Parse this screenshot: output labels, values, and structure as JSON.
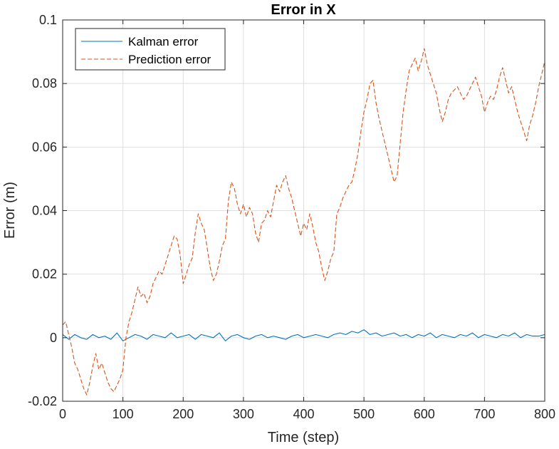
{
  "chart_data": {
    "type": "line",
    "title": "Error in X",
    "xlabel": "Time (step)",
    "ylabel": "Error (m)",
    "xlim": [
      0,
      800
    ],
    "ylim": [
      -0.02,
      0.1
    ],
    "xticks": [
      0,
      100,
      200,
      300,
      400,
      500,
      600,
      700,
      800
    ],
    "xtick_labels": [
      "0",
      "100",
      "200",
      "300",
      "400",
      "500",
      "600",
      "700",
      "800"
    ],
    "yticks": [
      -0.02,
      0,
      0.02,
      0.04,
      0.06,
      0.08,
      0.1
    ],
    "ytick_labels": [
      "-0.02",
      "0",
      "0.02",
      "0.04",
      "0.06",
      "0.08",
      "0.1"
    ],
    "grid": true,
    "legend_position": "top-left",
    "series": [
      {
        "name": "Kalman error",
        "color": "#0072BD",
        "style": "solid",
        "x": [
          0,
          10,
          20,
          30,
          40,
          50,
          60,
          70,
          80,
          90,
          100,
          110,
          120,
          130,
          140,
          150,
          160,
          170,
          180,
          190,
          200,
          210,
          220,
          230,
          240,
          250,
          260,
          270,
          280,
          290,
          300,
          310,
          320,
          330,
          340,
          350,
          360,
          370,
          380,
          390,
          400,
          410,
          420,
          430,
          440,
          450,
          460,
          470,
          480,
          490,
          500,
          510,
          520,
          530,
          540,
          550,
          560,
          570,
          580,
          590,
          600,
          610,
          620,
          630,
          640,
          650,
          660,
          670,
          680,
          690,
          700,
          710,
          720,
          730,
          740,
          750,
          760,
          770,
          780,
          790,
          800
        ],
        "y": [
          0.001,
          -0.0005,
          0.001,
          0.0,
          -0.0005,
          0.001,
          0.0,
          0.0005,
          -0.0005,
          0.0015,
          -0.001,
          0.0,
          0.001,
          0.0005,
          -0.0005,
          0.001,
          0.0005,
          0.0,
          0.0015,
          0.0,
          0.0005,
          0.001,
          -0.0005,
          0.001,
          0.0005,
          0.0,
          0.0015,
          -0.001,
          0.0005,
          0.001,
          0.0,
          -0.0005,
          0.0005,
          0.001,
          0.0,
          0.0005,
          0.0,
          -0.0005,
          0.0005,
          0.001,
          0.0,
          0.0005,
          0.001,
          0.0005,
          0.0,
          0.001,
          0.0015,
          0.001,
          0.002,
          0.0015,
          0.0025,
          0.001,
          0.0015,
          0.0005,
          0.001,
          0.0015,
          0.0005,
          0.001,
          0.0,
          0.001,
          0.0005,
          0.0015,
          0.0,
          0.001,
          0.0005,
          0.0,
          0.001,
          0.0005,
          0.0015,
          0.0,
          0.001,
          0.0005,
          0.0,
          0.001,
          0.0005,
          0.0015,
          0.0,
          0.001,
          0.0005,
          0.0005,
          0.001
        ]
      },
      {
        "name": "Prediction error",
        "color": "#D95319",
        "style": "dashed",
        "x": [
          0,
          5,
          10,
          15,
          20,
          25,
          30,
          35,
          40,
          45,
          50,
          55,
          60,
          65,
          70,
          75,
          80,
          85,
          90,
          95,
          100,
          105,
          110,
          115,
          120,
          125,
          130,
          135,
          140,
          145,
          150,
          155,
          160,
          165,
          170,
          175,
          180,
          185,
          190,
          195,
          200,
          205,
          210,
          215,
          220,
          225,
          230,
          235,
          240,
          245,
          250,
          255,
          260,
          265,
          270,
          275,
          280,
          285,
          290,
          295,
          300,
          305,
          310,
          315,
          320,
          325,
          330,
          335,
          340,
          345,
          350,
          355,
          360,
          365,
          370,
          375,
          380,
          385,
          390,
          395,
          400,
          405,
          410,
          415,
          420,
          425,
          430,
          435,
          440,
          445,
          450,
          455,
          460,
          465,
          470,
          475,
          480,
          485,
          490,
          495,
          500,
          505,
          510,
          515,
          520,
          525,
          530,
          535,
          540,
          545,
          550,
          555,
          560,
          565,
          570,
          575,
          580,
          585,
          590,
          595,
          600,
          605,
          610,
          615,
          620,
          625,
          630,
          635,
          640,
          645,
          650,
          655,
          660,
          665,
          670,
          675,
          680,
          685,
          690,
          695,
          700,
          705,
          710,
          715,
          720,
          725,
          730,
          735,
          740,
          745,
          750,
          755,
          760,
          765,
          770,
          775,
          780,
          785,
          790,
          795,
          800
        ],
        "y": [
          0.004,
          0.005,
          0.001,
          -0.003,
          -0.008,
          -0.01,
          -0.013,
          -0.016,
          -0.018,
          -0.014,
          -0.009,
          -0.005,
          -0.01,
          -0.008,
          -0.011,
          -0.014,
          -0.016,
          -0.017,
          -0.015,
          -0.013,
          -0.01,
          0.0,
          0.005,
          0.008,
          0.012,
          0.016,
          0.013,
          0.014,
          0.011,
          0.013,
          0.017,
          0.019,
          0.021,
          0.02,
          0.023,
          0.026,
          0.029,
          0.032,
          0.031,
          0.026,
          0.017,
          0.02,
          0.023,
          0.025,
          0.033,
          0.039,
          0.036,
          0.034,
          0.028,
          0.022,
          0.018,
          0.02,
          0.024,
          0.029,
          0.031,
          0.043,
          0.049,
          0.047,
          0.042,
          0.039,
          0.042,
          0.038,
          0.041,
          0.039,
          0.033,
          0.03,
          0.036,
          0.037,
          0.04,
          0.038,
          0.043,
          0.048,
          0.046,
          0.049,
          0.051,
          0.047,
          0.044,
          0.04,
          0.036,
          0.032,
          0.036,
          0.034,
          0.039,
          0.035,
          0.03,
          0.027,
          0.022,
          0.018,
          0.021,
          0.025,
          0.027,
          0.039,
          0.041,
          0.044,
          0.046,
          0.048,
          0.049,
          0.053,
          0.058,
          0.065,
          0.071,
          0.075,
          0.08,
          0.081,
          0.074,
          0.069,
          0.065,
          0.061,
          0.057,
          0.053,
          0.049,
          0.051,
          0.061,
          0.071,
          0.078,
          0.084,
          0.086,
          0.088,
          0.084,
          0.087,
          0.091,
          0.086,
          0.083,
          0.08,
          0.077,
          0.072,
          0.068,
          0.071,
          0.075,
          0.077,
          0.078,
          0.079,
          0.077,
          0.075,
          0.076,
          0.078,
          0.08,
          0.082,
          0.079,
          0.076,
          0.071,
          0.074,
          0.076,
          0.075,
          0.078,
          0.082,
          0.085,
          0.081,
          0.077,
          0.079,
          0.075,
          0.071,
          0.068,
          0.065,
          0.062,
          0.067,
          0.07,
          0.074,
          0.079,
          0.083,
          0.087
        ]
      }
    ]
  }
}
